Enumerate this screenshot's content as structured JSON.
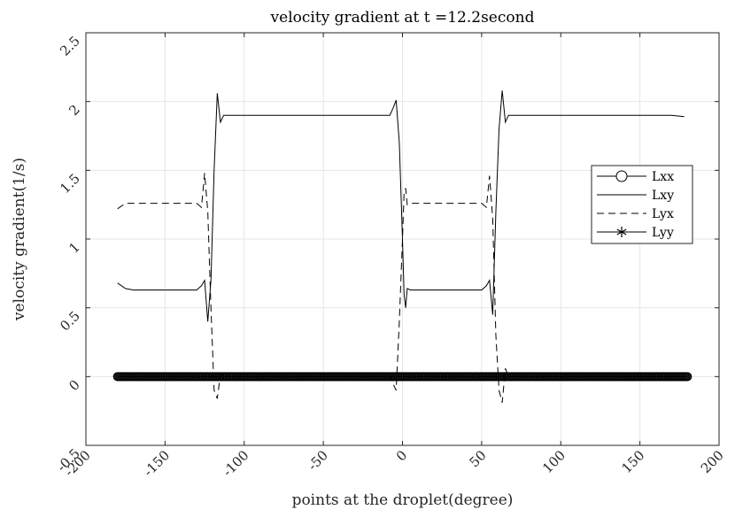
{
  "chart_data": {
    "type": "line",
    "title": "velocity gradient at t =12.2second",
    "xlabel": "points at the droplet(degree)",
    "ylabel": "velocity gradient(1/s)",
    "xlim": [
      -200,
      200
    ],
    "ylim": [
      -0.5,
      2.5
    ],
    "xticks": [
      "-200",
      "-150",
      "-100",
      "-50",
      "0",
      "50",
      "100",
      "150",
      "200"
    ],
    "yticks": [
      "-0.5",
      "0",
      "0.5",
      "1",
      "1.5",
      "2",
      "2.5"
    ],
    "grid": true,
    "legend_position": "right",
    "series": [
      {
        "name": "Lxx",
        "marker": "circle",
        "style": "solid",
        "x": [
          -180,
          -150,
          -120,
          -90,
          -60,
          -30,
          0,
          30,
          60,
          90,
          120,
          150,
          180
        ],
        "y": [
          0,
          0,
          0,
          0,
          0,
          0,
          0,
          0,
          0,
          0,
          0,
          0,
          0
        ]
      },
      {
        "name": "Lxy",
        "style": "solid",
        "x": [
          -180,
          -175,
          -170,
          -130,
          -127,
          -125,
          -123,
          -121,
          -119,
          -117,
          -115,
          -113,
          -110,
          -100,
          -60,
          -20,
          -8,
          -6,
          -4,
          -2,
          0,
          1,
          2,
          3,
          5,
          10,
          40,
          50,
          53,
          55,
          57,
          59,
          61,
          63,
          65,
          67,
          70,
          90,
          130,
          170,
          178
        ],
        "y": [
          0.68,
          0.64,
          0.63,
          0.63,
          0.66,
          0.7,
          0.4,
          0.7,
          1.5,
          2.06,
          1.85,
          1.9,
          1.9,
          1.9,
          1.9,
          1.9,
          1.9,
          1.95,
          2.01,
          1.7,
          1.0,
          0.6,
          0.5,
          0.64,
          0.63,
          0.63,
          0.63,
          0.63,
          0.66,
          0.7,
          0.45,
          1.2,
          1.8,
          2.08,
          1.85,
          1.9,
          1.9,
          1.9,
          1.9,
          1.9,
          1.89
        ]
      },
      {
        "name": "Lyx",
        "style": "dashed",
        "x": [
          -180,
          -175,
          -170,
          -130,
          -127,
          -125,
          -123,
          -121,
          -119,
          -117,
          -115,
          -113,
          -110,
          -100,
          -60,
          -20,
          -8,
          -6,
          -4,
          -2,
          0,
          1,
          2,
          3,
          5,
          10,
          40,
          50,
          53,
          55,
          57,
          59,
          61,
          63,
          65,
          67,
          70,
          90,
          130,
          170,
          178
        ],
        "y": [
          1.22,
          1.26,
          1.26,
          1.26,
          1.23,
          1.48,
          1.2,
          0.5,
          -0.1,
          -0.16,
          0.02,
          0,
          0,
          0,
          0,
          0,
          0,
          -0.05,
          -0.1,
          0.4,
          1.0,
          1.33,
          1.37,
          1.25,
          1.26,
          1.26,
          1.26,
          1.26,
          1.23,
          1.46,
          1.15,
          0.3,
          -0.1,
          -0.19,
          0.06,
          0,
          0,
          0,
          0,
          0,
          0
        ]
      },
      {
        "name": "Lyy",
        "marker": "star",
        "style": "solid",
        "x": [
          -180,
          -150,
          -120,
          -90,
          -60,
          -30,
          0,
          30,
          60,
          90,
          120,
          150,
          180
        ],
        "y": [
          0,
          0,
          0,
          0,
          0,
          0,
          0,
          0,
          0,
          0,
          0,
          0,
          0
        ]
      }
    ]
  }
}
